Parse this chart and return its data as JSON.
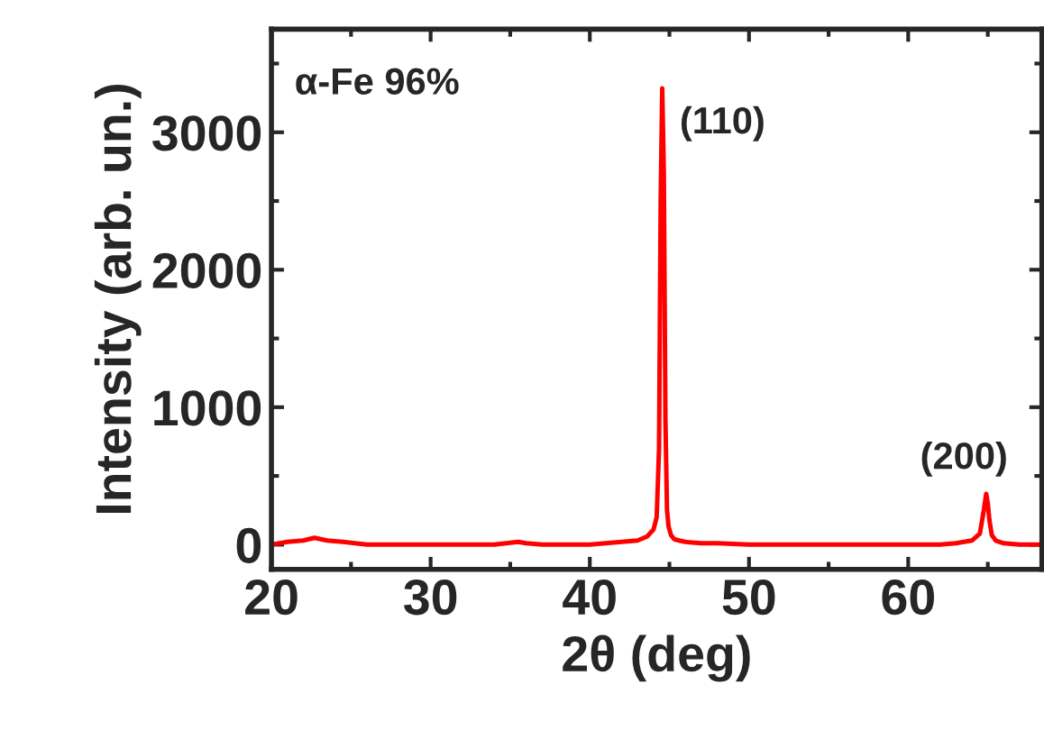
{
  "chart_data": {
    "type": "line",
    "xlabel": "2θ (deg)",
    "ylabel": "Intensity (arb. un.)",
    "xlim": [
      20,
      68.4
    ],
    "ylim": [
      -180,
      3750
    ],
    "xticks": [
      20,
      30,
      40,
      50,
      60
    ],
    "yticks": [
      0,
      1000,
      2000,
      3000
    ],
    "grid": false,
    "marker": "none",
    "line_style": "solid",
    "annotations": [
      "α-Fe 96%",
      {
        "text": "(110)",
        "x": 44.7,
        "y": 3320
      },
      {
        "text": "(200)",
        "x": 65.0,
        "y": 370
      }
    ],
    "series": [
      {
        "color": "#ff0000",
        "x": [
          20,
          21,
          22,
          22.7,
          23.5,
          24.5,
          26,
          28,
          30,
          32,
          34,
          35.5,
          36,
          37,
          38,
          40,
          41,
          42,
          43,
          43.6,
          44.0,
          44.2,
          44.35,
          44.45,
          44.55,
          44.65,
          44.75,
          44.85,
          44.95,
          45.1,
          45.3,
          45.6,
          46,
          47,
          48,
          50,
          52,
          54,
          56,
          58,
          60,
          62,
          63,
          64,
          64.5,
          64.75,
          64.9,
          65.0,
          65.1,
          65.25,
          65.5,
          66,
          67,
          68.4
        ],
        "values": [
          0,
          20,
          30,
          50,
          30,
          20,
          0,
          0,
          0,
          0,
          0,
          20,
          10,
          0,
          0,
          0,
          10,
          20,
          30,
          60,
          110,
          200,
          700,
          2500,
          3320,
          2700,
          900,
          250,
          130,
          70,
          40,
          30,
          20,
          10,
          10,
          0,
          0,
          0,
          0,
          0,
          0,
          0,
          10,
          30,
          80,
          250,
          370,
          300,
          180,
          70,
          30,
          10,
          0,
          0
        ]
      }
    ]
  }
}
